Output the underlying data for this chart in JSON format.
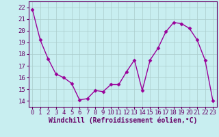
{
  "x": [
    0,
    1,
    2,
    3,
    4,
    5,
    6,
    7,
    8,
    9,
    10,
    11,
    12,
    13,
    14,
    15,
    16,
    17,
    18,
    19,
    20,
    21,
    22,
    23
  ],
  "y": [
    21.8,
    19.2,
    17.6,
    16.3,
    16.0,
    15.5,
    14.1,
    14.2,
    14.9,
    14.8,
    15.4,
    15.4,
    16.5,
    17.5,
    14.9,
    17.5,
    18.5,
    19.9,
    20.7,
    20.6,
    20.2,
    19.2,
    17.5,
    14.0
  ],
  "line_color": "#990099",
  "marker": "D",
  "marker_size": 2.5,
  "linewidth": 1.0,
  "bg_color": "#c8eef0",
  "grid_color": "#aacccc",
  "axis_color": "#660066",
  "xlabel": "Windchill (Refroidissement éolien,°C)",
  "xlabel_color": "#660066",
  "ylabel_color": "#660066",
  "tick_color": "#660066",
  "ylim": [
    13.5,
    22.5
  ],
  "yticks": [
    14,
    15,
    16,
    17,
    18,
    19,
    20,
    21,
    22
  ],
  "xlim": [
    -0.5,
    23.5
  ],
  "xticks": [
    0,
    1,
    2,
    3,
    4,
    5,
    6,
    7,
    8,
    9,
    10,
    11,
    12,
    13,
    14,
    15,
    16,
    17,
    18,
    19,
    20,
    21,
    22,
    23
  ],
  "font_size": 6.5,
  "xlabel_size": 7.0
}
